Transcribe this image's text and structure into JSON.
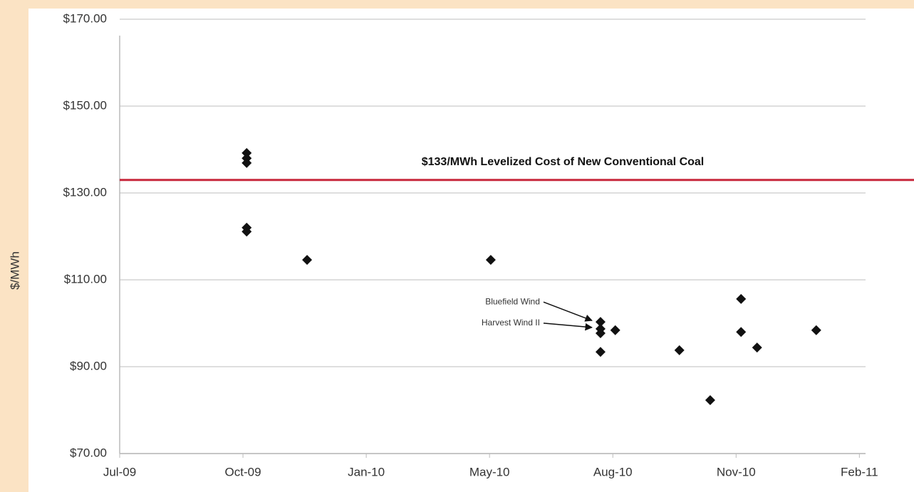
{
  "chart_data": {
    "type": "scatter",
    "ylabel": "$/MWh",
    "xlim": [
      0,
      6.05
    ],
    "xticks": [
      {
        "value": 0,
        "label": "Jul-09"
      },
      {
        "value": 1,
        "label": "Oct-09"
      },
      {
        "value": 2,
        "label": "Jan-10"
      },
      {
        "value": 3,
        "label": "May-10"
      },
      {
        "value": 4,
        "label": "Aug-10"
      },
      {
        "value": 5,
        "label": "Nov-10"
      },
      {
        "value": 6,
        "label": "Feb-11"
      }
    ],
    "ylim": [
      70,
      170
    ],
    "yticks": [
      {
        "value": 70,
        "label": "$70.00"
      },
      {
        "value": 90,
        "label": "$90.00"
      },
      {
        "value": 110,
        "label": "$110.00"
      },
      {
        "value": 130,
        "label": "$130.00"
      },
      {
        "value": 150,
        "label": "$150.00"
      },
      {
        "value": 170,
        "label": "$170.00"
      }
    ],
    "grid": true,
    "series": [
      {
        "color": "#111111",
        "x": [
          1.03,
          1.03,
          1.03,
          1.03,
          1.03,
          1.52,
          3.01,
          3.9,
          3.9,
          3.9,
          3.9,
          4.02,
          4.54,
          4.79,
          5.04,
          5.04,
          5.17,
          5.65
        ],
        "values": [
          139.2,
          138.0,
          136.9,
          122.0,
          121.1,
          114.6,
          114.6,
          100.3,
          98.7,
          97.7,
          93.4,
          98.4,
          93.8,
          82.3,
          105.6,
          98.0,
          94.4,
          98.4
        ]
      }
    ],
    "reference_line": {
      "value": 133,
      "label": "$133/MWh Levelized Cost of New Conventional Coal",
      "color": "#c8283c"
    },
    "annotations": [
      {
        "text": "Bluefield Wind",
        "x": 3.9,
        "y": 100.3
      },
      {
        "text": "Harvest Wind II",
        "x": 3.9,
        "y": 98.7
      }
    ]
  }
}
